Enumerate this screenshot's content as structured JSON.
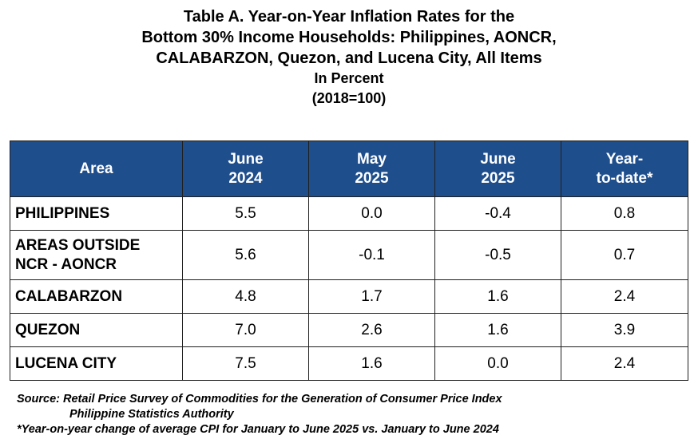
{
  "title": {
    "lines": [
      "Table A. Year-on-Year Inflation Rates for the",
      "Bottom 30% Income Households: Philippines, AONCR,",
      "CALABARZON, Quezon, and Lucena City, All Items"
    ],
    "unit": "In Percent",
    "base": "(2018=100)"
  },
  "table": {
    "headers": [
      "Area",
      "June\n2024",
      "May\n2025",
      "June\n2025",
      "Year-\nto-date*"
    ],
    "rows": [
      {
        "area": "PHILIPPINES",
        "values": [
          "5.5",
          "0.0",
          "-0.4",
          "0.8"
        ]
      },
      {
        "area": "AREAS OUTSIDE\nNCR - AONCR",
        "values": [
          "5.6",
          "-0.1",
          "-0.5",
          "0.7"
        ]
      },
      {
        "area": "CALABARZON",
        "values": [
          "4.8",
          "1.7",
          "1.6",
          "2.4"
        ]
      },
      {
        "area": "QUEZON",
        "values": [
          "7.0",
          "2.6",
          "1.6",
          "3.9"
        ]
      },
      {
        "area": "LUCENA CITY",
        "values": [
          "7.5",
          "1.6",
          "0.0",
          "2.4"
        ]
      }
    ]
  },
  "footnotes": {
    "source_line1": "Source: Retail Price Survey of Commodities for the Generation of Consumer Price Index",
    "source_line2": "Philippine Statistics Authority",
    "note": "*Year-on-year change of average CPI for January to June 2025 vs. January to June 2024"
  },
  "colors": {
    "header_bg": "#1f4e8c",
    "header_text": "#ffffff",
    "border": "#1f1f1f"
  }
}
